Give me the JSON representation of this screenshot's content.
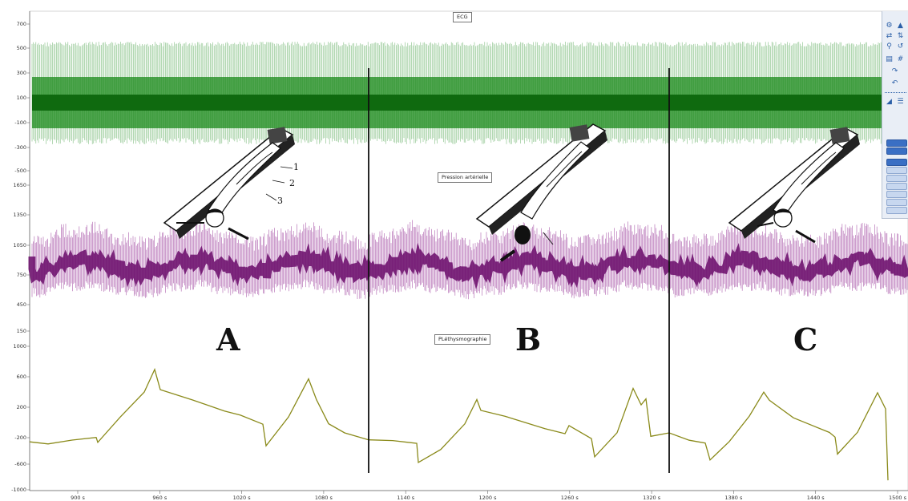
{
  "channels": {
    "ecg": {
      "label": "ECG",
      "color": "#1a8a1a",
      "y_ticks": [
        "700",
        "500",
        "300",
        "100",
        "-100",
        "-300",
        "-500"
      ]
    },
    "bp": {
      "label": "Pression artérielle",
      "color": "#8a1a8a",
      "y_ticks": [
        "1650",
        "1350",
        "1050",
        "750",
        "450",
        "150"
      ]
    },
    "pleth": {
      "label": "PLéthysmographie",
      "color": "#8a8a1a",
      "y_ticks": [
        "1000",
        "600",
        "200",
        "-200",
        "-600",
        "-1000"
      ]
    }
  },
  "time_axis": {
    "ticks": [
      "900 s",
      "960 s",
      "1020 s",
      "1080 s",
      "1140 s",
      "1200 s",
      "1260 s",
      "1320 s",
      "1380 s",
      "1440 s",
      "1500 s"
    ]
  },
  "phases": [
    {
      "letter": "A",
      "numbers": [
        "1",
        "2",
        "3"
      ]
    },
    {
      "letter": "B"
    },
    {
      "letter": "C"
    }
  ],
  "toolbar": {
    "icons": [
      "gear-icon",
      "mountain-icon",
      "zoom-x-icon",
      "zoom-y-icon",
      "magnify-icon",
      "swap-icon",
      "clipboard-icon",
      "grid-icon",
      "fit-icon",
      "undo-icon",
      "ruler-icon",
      "list-icon"
    ]
  }
}
